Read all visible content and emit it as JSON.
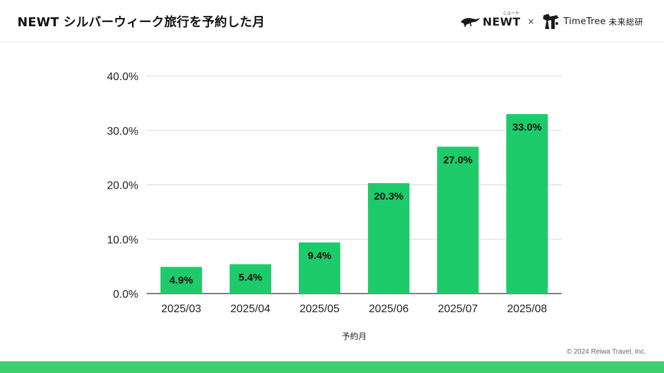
{
  "header": {
    "title": "NEWT シルバーウィーク旅行を予約した月",
    "newt_logo_text": "NEWT",
    "newt_ruby": "ニュート",
    "cross": "×",
    "timetree_text": "TimeTree",
    "timetree_jp": "未来総研"
  },
  "colors": {
    "bar": "#1ecb6b",
    "footer_band": "#3fcf6f",
    "grid": "#d9d9d9",
    "axis": "#333333"
  },
  "chart_data": {
    "type": "bar",
    "categories": [
      "2025/03",
      "2025/04",
      "2025/05",
      "2025/06",
      "2025/07",
      "2025/08"
    ],
    "values": [
      4.9,
      5.4,
      9.4,
      20.3,
      27.0,
      33.0
    ],
    "value_labels": [
      "4.9%",
      "5.4%",
      "9.4%",
      "20.3%",
      "27.0%",
      "33.0%"
    ],
    "y_ticks": [
      0,
      10,
      20,
      30,
      40
    ],
    "y_tick_labels": [
      "0.0%",
      "10.0%",
      "20.0%",
      "30.0%",
      "40.0%"
    ],
    "ylim": [
      0,
      40
    ],
    "xlabel": "予約月",
    "ylabel": "",
    "title": "NEWT シルバーウィーク旅行を予約した月",
    "grid": true,
    "legend": "none"
  },
  "footer": {
    "copyright": "© 2024 Reiwa Travel, Inc."
  }
}
